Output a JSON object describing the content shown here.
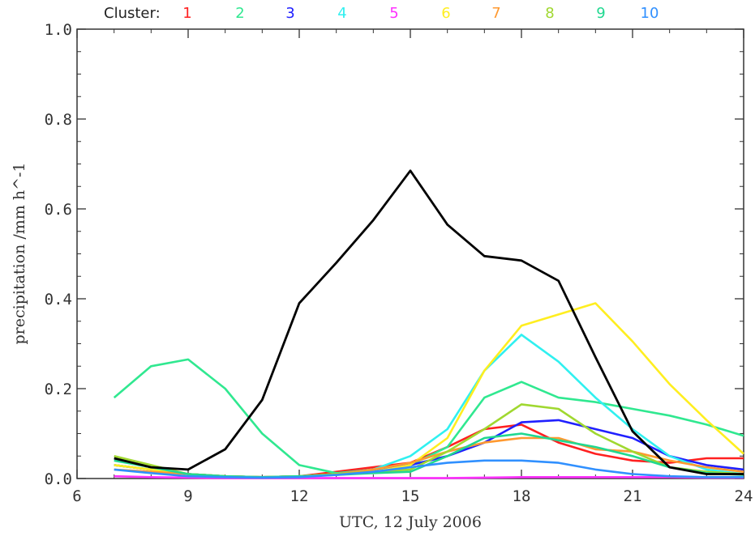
{
  "chart_data": {
    "type": "line",
    "xlabel": "UTC, 12 July 2006",
    "ylabel": "precipitation /mm h^-1",
    "xlim": [
      6,
      24
    ],
    "ylim": [
      0,
      1.0
    ],
    "x_ticks": [
      "6",
      "9",
      "12",
      "15",
      "18",
      "21",
      "24"
    ],
    "y_ticks": [
      "0.0",
      "0.2",
      "0.4",
      "0.6",
      "0.8",
      "1.0"
    ],
    "grid": false,
    "legend_title": "Cluster:",
    "legend_placement": "top",
    "x": [
      7,
      8,
      9,
      10,
      11,
      12,
      13,
      14,
      15,
      16,
      17,
      18,
      19,
      20,
      21,
      22,
      23,
      24
    ],
    "series": [
      {
        "name": "1",
        "color": "#ff2020",
        "values": [
          0.03,
          0.02,
          0.01,
          0.005,
          0.003,
          0.005,
          0.015,
          0.025,
          0.035,
          0.07,
          0.11,
          0.12,
          0.08,
          0.055,
          0.04,
          0.035,
          0.045,
          0.045
        ]
      },
      {
        "name": "2",
        "color": "#30e890",
        "values": [
          0.18,
          0.25,
          0.265,
          0.2,
          0.1,
          0.03,
          0.012,
          0.02,
          0.03,
          0.07,
          0.18,
          0.215,
          0.18,
          0.17,
          0.155,
          0.14,
          0.12,
          0.095
        ]
      },
      {
        "name": "3",
        "color": "#2020ff",
        "values": [
          0.03,
          0.02,
          0.01,
          0.005,
          0.003,
          0.005,
          0.01,
          0.02,
          0.03,
          0.05,
          0.08,
          0.125,
          0.13,
          0.11,
          0.09,
          0.05,
          0.03,
          0.02
        ]
      },
      {
        "name": "4",
        "color": "#30f0f0",
        "values": [
          0.03,
          0.02,
          0.01,
          0.005,
          0.003,
          0.005,
          0.01,
          0.02,
          0.05,
          0.11,
          0.24,
          0.32,
          0.26,
          0.18,
          0.11,
          0.05,
          0.02,
          0.01
        ]
      },
      {
        "name": "5",
        "color": "#ff30ff",
        "values": [
          0.005,
          0.003,
          0.002,
          0.001,
          0.001,
          0.001,
          0.001,
          0.001,
          0.001,
          0.001,
          0.002,
          0.003,
          0.003,
          0.003,
          0.003,
          0.003,
          0.002,
          0.002
        ]
      },
      {
        "name": "6",
        "color": "#ffee20",
        "values": [
          0.03,
          0.02,
          0.01,
          0.005,
          0.003,
          0.005,
          0.01,
          0.015,
          0.03,
          0.09,
          0.24,
          0.34,
          0.365,
          0.39,
          0.305,
          0.21,
          0.13,
          0.055
        ]
      },
      {
        "name": "7",
        "color": "#ff9930",
        "values": [
          0.02,
          0.015,
          0.01,
          0.005,
          0.003,
          0.005,
          0.01,
          0.02,
          0.035,
          0.06,
          0.08,
          0.09,
          0.09,
          0.065,
          0.06,
          0.04,
          0.025,
          0.015
        ]
      },
      {
        "name": "8",
        "color": "#a0d830",
        "values": [
          0.05,
          0.03,
          0.01,
          0.005,
          0.003,
          0.005,
          0.01,
          0.015,
          0.02,
          0.06,
          0.11,
          0.165,
          0.155,
          0.1,
          0.06,
          0.025,
          0.015,
          0.01
        ]
      },
      {
        "name": "9",
        "color": "#20d890",
        "values": [
          0.04,
          0.025,
          0.01,
          0.005,
          0.003,
          0.005,
          0.008,
          0.012,
          0.015,
          0.05,
          0.09,
          0.1,
          0.085,
          0.07,
          0.05,
          0.025,
          0.012,
          0.008
        ]
      },
      {
        "name": "10",
        "color": "#3090ff",
        "values": [
          0.02,
          0.012,
          0.005,
          0.003,
          0.002,
          0.003,
          0.008,
          0.015,
          0.025,
          0.035,
          0.04,
          0.04,
          0.035,
          0.02,
          0.01,
          0.005,
          0.003,
          0.003
        ]
      },
      {
        "color": "#000000",
        "values": [
          0.045,
          0.025,
          0.02,
          0.065,
          0.175,
          0.39,
          0.48,
          0.575,
          0.685,
          0.565,
          0.495,
          0.485,
          0.44,
          0.27,
          0.105,
          0.025,
          0.01,
          0.01
        ]
      }
    ]
  }
}
